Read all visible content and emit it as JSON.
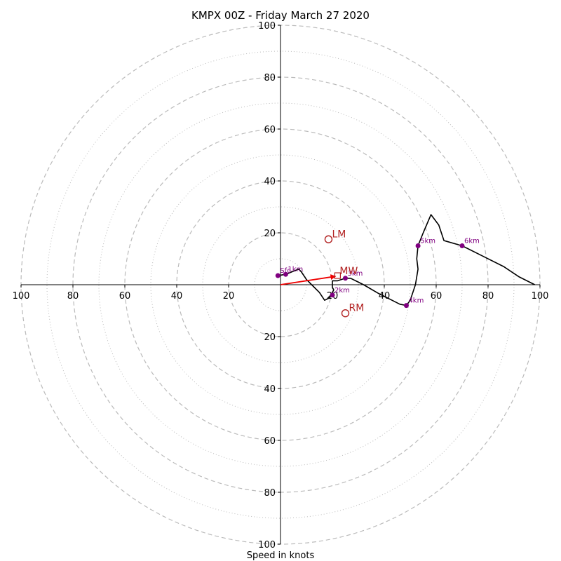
{
  "chart_data": {
    "type": "hodograph",
    "title": "KMPX 00Z - Friday March 27 2020",
    "xlabel": "Speed in knots",
    "max_speed": 100,
    "ring_major": [
      20,
      40,
      60,
      80,
      100
    ],
    "ring_minor": [
      10,
      30,
      50,
      70,
      90
    ],
    "x_tick_labels": [
      "100",
      "80",
      "60",
      "40",
      "20",
      "20",
      "40",
      "60",
      "80",
      "100"
    ],
    "x_tick_values": [
      -100,
      -80,
      -60,
      -40,
      -20,
      20,
      40,
      60,
      80,
      100
    ],
    "y_tick_labels": [
      "100",
      "80",
      "60",
      "40",
      "20",
      "20",
      "40",
      "60",
      "80",
      "100"
    ],
    "y_tick_values": [
      100,
      80,
      60,
      40,
      20,
      -20,
      -40,
      -60,
      -80,
      -100
    ],
    "hodograph_line": [
      [
        -1,
        3.5
      ],
      [
        2,
        4
      ],
      [
        7,
        6
      ],
      [
        8,
        5
      ],
      [
        10,
        2
      ],
      [
        12,
        0
      ],
      [
        15,
        -3
      ],
      [
        17,
        -6
      ],
      [
        19,
        -5
      ],
      [
        20,
        -3
      ],
      [
        20.5,
        -2
      ],
      [
        20,
        -1
      ],
      [
        20,
        1.5
      ],
      [
        22,
        1.5
      ],
      [
        25,
        2.5
      ],
      [
        27,
        2.5
      ],
      [
        32,
        0
      ],
      [
        38,
        -3.5
      ],
      [
        43,
        -6
      ],
      [
        46,
        -7.5
      ],
      [
        48.5,
        -8
      ],
      [
        50,
        -6
      ],
      [
        52,
        0
      ],
      [
        53,
        6
      ],
      [
        52.5,
        10
      ],
      [
        53,
        15
      ],
      [
        55,
        20
      ],
      [
        58,
        27
      ],
      [
        61,
        23
      ],
      [
        63,
        17
      ],
      [
        70,
        15
      ],
      [
        78,
        11
      ],
      [
        86,
        7
      ],
      [
        92,
        3
      ],
      [
        98,
        0
      ]
    ],
    "height_markers": [
      {
        "label": "Sfc",
        "x": -1,
        "y": 3.5
      },
      {
        "label": "1km",
        "x": 2,
        "y": 4
      },
      {
        "label": "2km",
        "x": 20,
        "y": -4
      },
      {
        "label": "3km",
        "x": 25,
        "y": 2.5
      },
      {
        "label": "4km",
        "x": 48.5,
        "y": -8
      },
      {
        "label": "5km",
        "x": 53,
        "y": 15
      },
      {
        "label": "6km",
        "x": 70,
        "y": 15
      }
    ],
    "mean_wind": {
      "label": "MW",
      "x": 22,
      "y": 3.5
    },
    "storm_motions": [
      {
        "label": "LM",
        "x": 18.5,
        "y": 17.5
      },
      {
        "label": "RM",
        "x": 25,
        "y": -11
      }
    ],
    "colors": {
      "line": "#000000",
      "marker": "#800080",
      "storm": "#b22222",
      "arrow": "#ee0000",
      "ring": "#bbbbbb",
      "axis": "#000000"
    }
  }
}
